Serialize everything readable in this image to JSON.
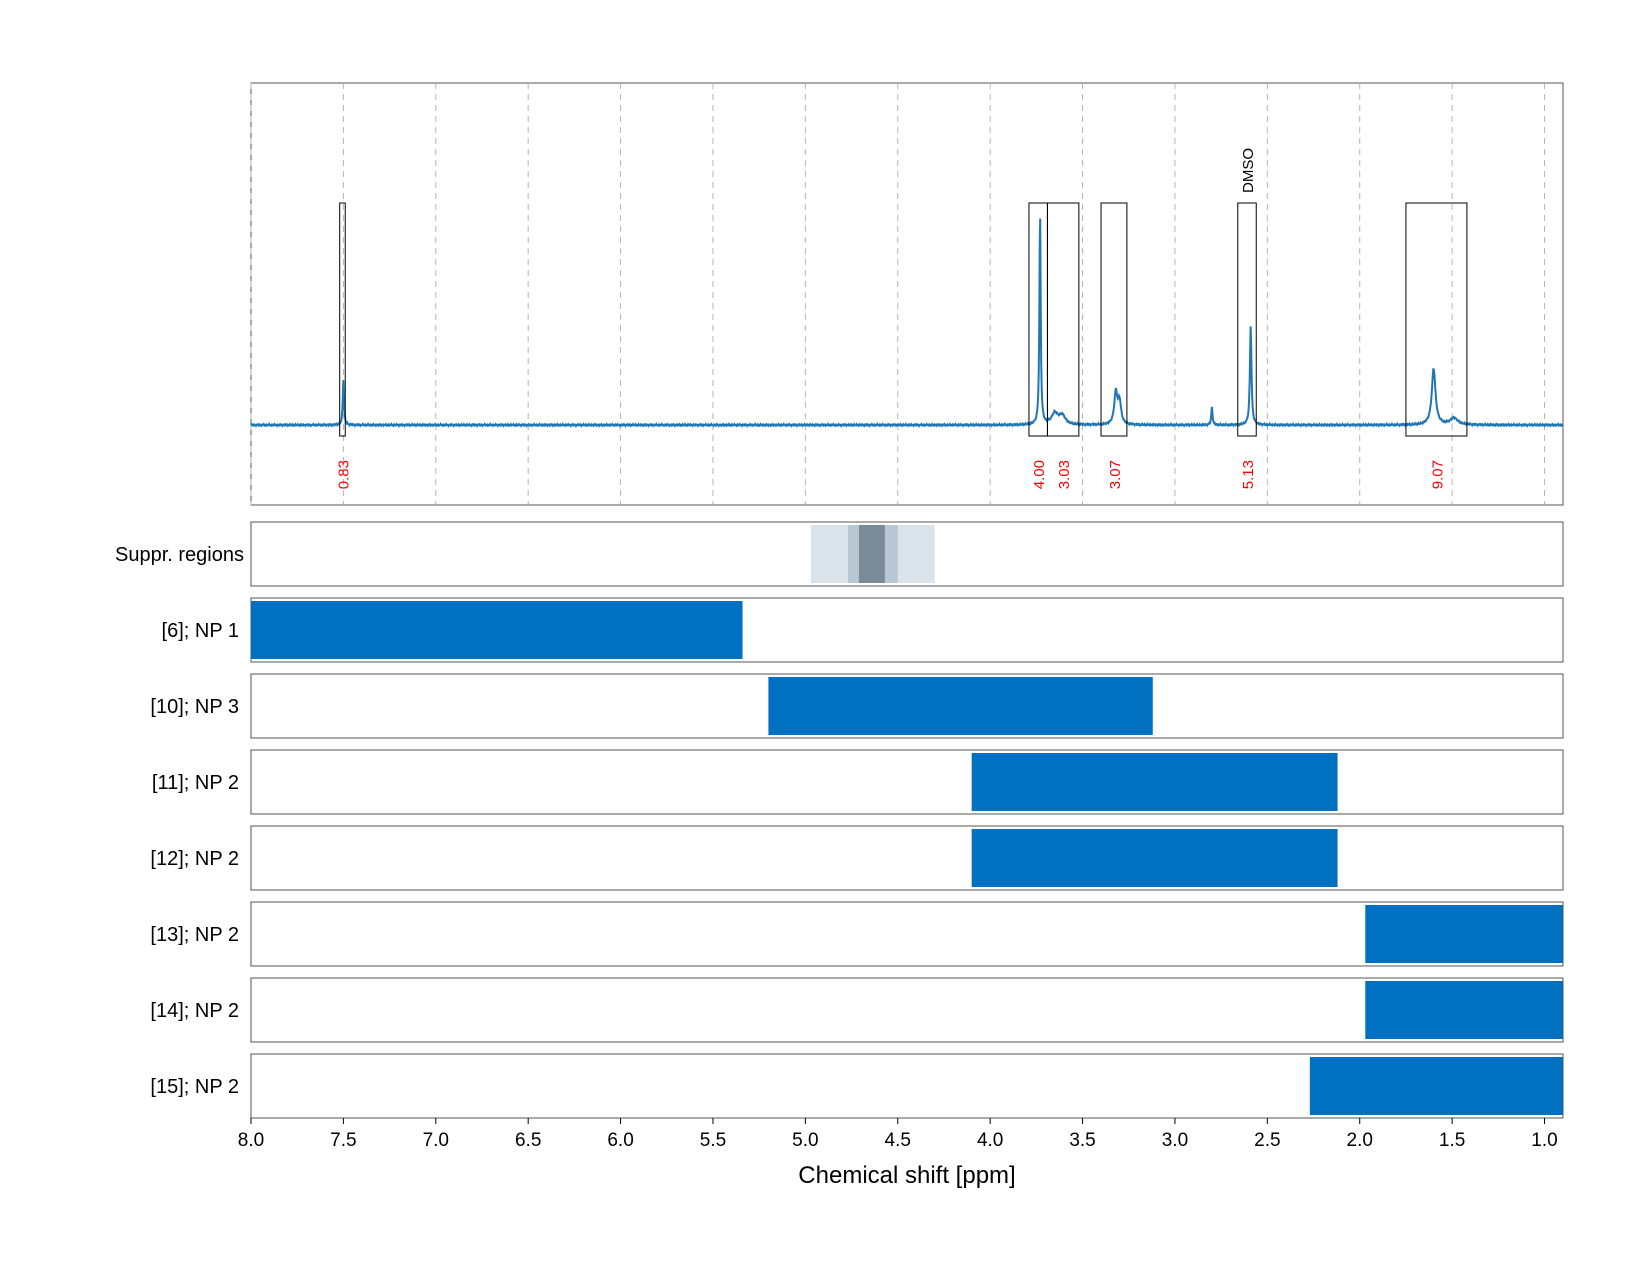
{
  "chart_data": {
    "type": "nmr-spectrum-with-range-bars",
    "xlabel": "Chemical shift [ppm]",
    "x_axis": {
      "range": [
        8.0,
        0.9
      ],
      "reversed": true,
      "ticks": [
        8.0,
        7.5,
        7.0,
        6.5,
        6.0,
        5.5,
        5.0,
        4.5,
        4.0,
        3.5,
        3.0,
        2.5,
        2.0,
        1.5,
        1.0
      ],
      "tick_labels": [
        "8.0",
        "7.5",
        "7.0",
        "6.5",
        "6.0",
        "5.5",
        "5.0",
        "4.5",
        "4.0",
        "3.5",
        "3.0",
        "2.5",
        "2.0",
        "1.5",
        "1.0"
      ]
    },
    "grid": true,
    "colors": {
      "spectrum": "#1f77b4",
      "bars": "#0070c0",
      "integral_text": "#ff0000",
      "suppression": [
        "#dbe3ea",
        "#b8c7d1",
        "#7a8a98"
      ]
    },
    "spectrum": {
      "baseline": 0,
      "peaks": [
        {
          "ppm": 7.5,
          "height": 0.2,
          "width": 0.004
        },
        {
          "ppm": 3.73,
          "height": 0.96,
          "width": 0.004
        },
        {
          "ppm": 3.65,
          "height": 0.05,
          "width": 0.02
        },
        {
          "ppm": 3.61,
          "height": 0.04,
          "width": 0.02
        },
        {
          "ppm": 3.32,
          "height": 0.14,
          "width": 0.01
        },
        {
          "ppm": 3.3,
          "height": 0.1,
          "width": 0.01
        },
        {
          "ppm": 2.8,
          "height": 0.08,
          "width": 0.004
        },
        {
          "ppm": 2.59,
          "height": 0.44,
          "width": 0.005
        },
        {
          "ppm": 1.6,
          "height": 0.25,
          "width": 0.012
        },
        {
          "ppm": 1.49,
          "height": 0.03,
          "width": 0.025
        }
      ]
    },
    "integral_regions": [
      {
        "from": 7.52,
        "to": 7.49,
        "value": "0.83"
      },
      {
        "from": 3.79,
        "to": 3.69,
        "value": "4.00"
      },
      {
        "from": 3.69,
        "to": 3.52,
        "value": "3.03"
      },
      {
        "from": 3.4,
        "to": 3.26,
        "value": "3.07"
      },
      {
        "from": 2.66,
        "to": 2.56,
        "value": "5.13"
      },
      {
        "from": 1.75,
        "to": 1.42,
        "value": "9.07"
      }
    ],
    "peak_labels": [
      {
        "ppm": 2.61,
        "text": "DMSO"
      }
    ],
    "suppression_regions": {
      "label": "Suppr. regions",
      "layers": [
        {
          "from": 4.97,
          "to": 4.3,
          "level": 0
        },
        {
          "from": 4.77,
          "to": 4.5,
          "level": 1
        },
        {
          "from": 4.71,
          "to": 4.57,
          "level": 2
        }
      ]
    },
    "range_rows": [
      {
        "label": "[6]; NP 1",
        "from": 8.0,
        "to": 5.34
      },
      {
        "label": "[10]; NP 3",
        "from": 5.2,
        "to": 3.12
      },
      {
        "label": "[11]; NP 2",
        "from": 4.1,
        "to": 2.12
      },
      {
        "label": "[12]; NP 2",
        "from": 4.1,
        "to": 2.12
      },
      {
        "label": "[13]; NP 2",
        "from": 1.97,
        "to": 0.9
      },
      {
        "label": "[14]; NP 2",
        "from": 1.97,
        "to": 0.9
      },
      {
        "label": "[15]; NP 2",
        "from": 2.27,
        "to": 0.9
      }
    ]
  }
}
